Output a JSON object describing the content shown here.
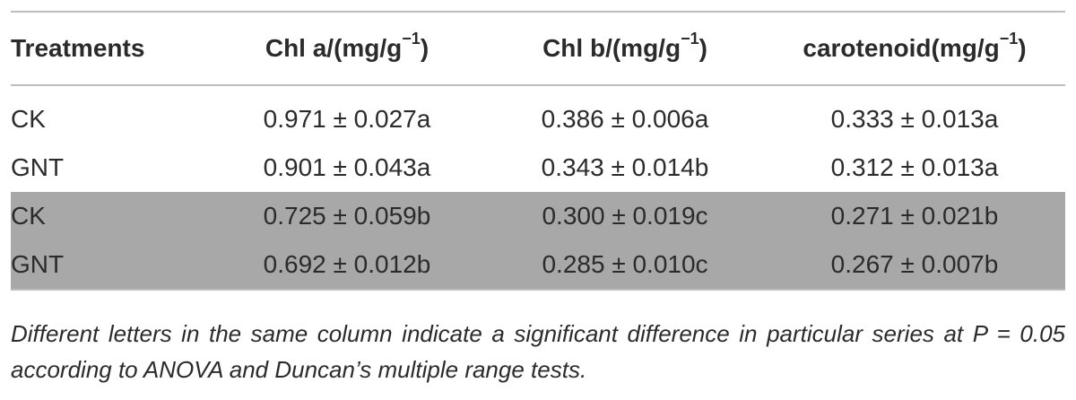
{
  "table": {
    "header": [
      {
        "text": "Treatments"
      },
      {
        "text": "Chl a/(mg/g",
        "sup": "−1",
        "after": ")"
      },
      {
        "text": "Chl b/(mg/g",
        "sup": "−1",
        "after": ")"
      },
      {
        "text": "carotenoid(mg/g",
        "sup": "−1",
        "after": ")"
      }
    ],
    "rows": [
      [
        "CK",
        "0.971 ± 0.027a",
        "0.386 ± 0.006a",
        "0.333 ± 0.013a"
      ],
      [
        "GNT",
        "0.901 ± 0.043a",
        "0.343 ± 0.014b",
        "0.312 ± 0.013a"
      ],
      [
        "CK",
        "0.725 ± 0.059b",
        "0.300 ± 0.019c",
        "0.271 ± 0.021b"
      ],
      [
        "GNT",
        "0.692 ± 0.012b",
        "0.285 ± 0.010c",
        "0.267 ± 0.007b"
      ]
    ],
    "note": "Different letters in the same column indicate a significant difference in particular series at P = 0.05 according to ANOVA and Duncan’s multiple range tests."
  }
}
